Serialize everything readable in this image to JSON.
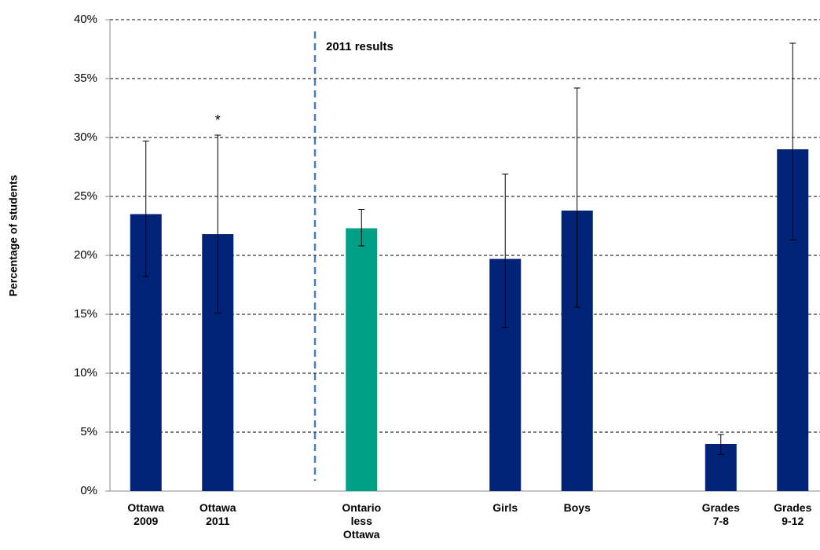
{
  "chart_data": {
    "type": "bar",
    "y_label": "Percentage of students",
    "annotations": [
      "2011 results",
      "*"
    ],
    "categories": [
      "Ottawa\n2009",
      "Ottawa\n2011",
      null,
      "Ontario\nless\nOttawa",
      null,
      "Girls",
      "Boys",
      null,
      "Grades\n7-8",
      "Grades\n9-12"
    ],
    "values": [
      23.5,
      21.8,
      null,
      22.3,
      null,
      19.7,
      23.8,
      null,
      4.0,
      29.0
    ],
    "error_low": [
      18.2,
      15.1,
      null,
      20.8,
      null,
      13.9,
      15.6,
      null,
      3.1,
      21.3
    ],
    "error_high": [
      29.7,
      30.2,
      null,
      23.9,
      null,
      26.9,
      34.2,
      null,
      4.8,
      38.0
    ],
    "colors": [
      "#002277",
      "#002277",
      null,
      "#00a087",
      null,
      "#002277",
      "#002277",
      null,
      "#002277",
      "#002277"
    ],
    "ylim": [
      0,
      40
    ],
    "yticks": [
      {
        "value": 0,
        "label": "0%"
      },
      {
        "value": 5,
        "label": "5%"
      },
      {
        "value": 10,
        "label": "10%"
      },
      {
        "value": 15,
        "label": "15%"
      },
      {
        "value": 20,
        "label": "20%"
      },
      {
        "value": 25,
        "label": "25%"
      },
      {
        "value": 30,
        "label": "30%"
      },
      {
        "value": 35,
        "label": "35%"
      },
      {
        "value": 40,
        "label": "40%"
      }
    ],
    "grid": true
  }
}
